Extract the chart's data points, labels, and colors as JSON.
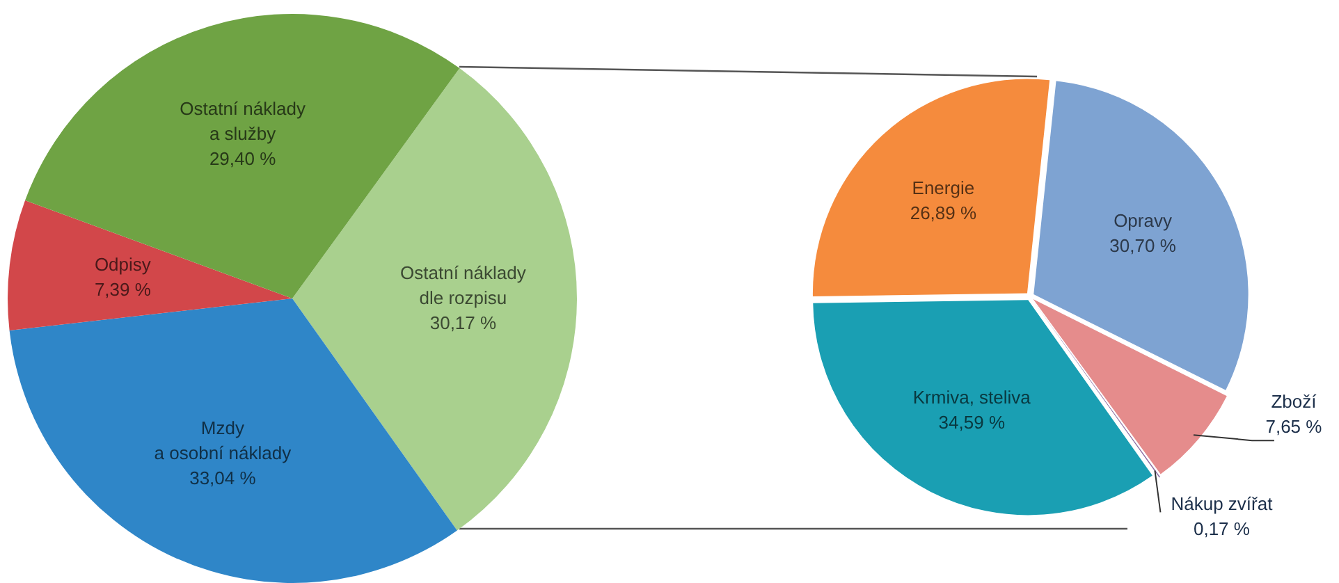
{
  "chart_data": [
    {
      "type": "pie",
      "categories": [
        "Ostatní náklady\ndle rozpisu",
        "Mzdy\na osobní náklady",
        "Odpisy",
        "Ostatní náklady\na služby"
      ],
      "values": [
        30.17,
        33.04,
        7.39,
        29.4
      ],
      "colors": [
        "#a9d08e",
        "#2f86c8",
        "#d2474a",
        "#6fa344"
      ],
      "value_labels": [
        "30,17 %",
        "33,04 %",
        "7,39 %",
        "29,40 %"
      ]
    },
    {
      "type": "pie",
      "categories": [
        "Opravy",
        "Zboží",
        "Nákup zvířat",
        "Krmiva, steliva",
        "Energie"
      ],
      "values": [
        30.7,
        7.65,
        0.17,
        34.59,
        26.89
      ],
      "colors": [
        "#7ea3d2",
        "#e58c8c",
        "#8a6aa0",
        "#1a9fb3",
        "#f58b3d"
      ],
      "value_labels": [
        "30,70 %",
        "7,65 %",
        "0,17 %",
        "34,59 %",
        "26,89 %"
      ]
    }
  ]
}
